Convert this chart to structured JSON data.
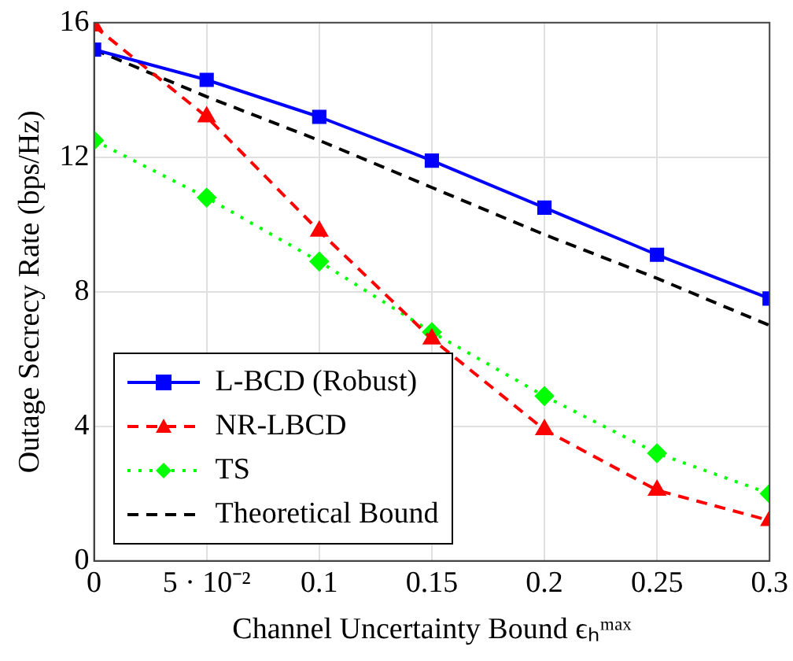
{
  "chart_data": {
    "type": "line",
    "xlabel": "Channel Uncertainty Bound ϵₕᵐᵃˣ",
    "ylabel": "Outage Secrecy Rate (bps/Hz)",
    "x": [
      0,
      0.05,
      0.1,
      0.15,
      0.2,
      0.25,
      0.3
    ],
    "series": [
      {
        "name": "L-BCD (Robust)",
        "color": "#0000ff",
        "marker": "square",
        "line_style": "solid",
        "values": [
          15.2,
          14.3,
          13.2,
          11.9,
          10.5,
          9.1,
          7.8
        ]
      },
      {
        "name": "NR-LBCD",
        "color": "#ff0000",
        "marker": "triangle",
        "line_style": "dashed",
        "values": [
          15.9,
          13.2,
          9.8,
          6.6,
          3.9,
          2.1,
          1.2
        ]
      },
      {
        "name": "TS",
        "color": "#00ff00",
        "marker": "diamond",
        "line_style": "dotted",
        "values": [
          12.5,
          10.8,
          8.9,
          6.8,
          4.9,
          3.2,
          2.0
        ]
      },
      {
        "name": "Theoretical Bound",
        "color": "#000000",
        "marker": "none",
        "line_style": "dashed",
        "values": [
          15.2,
          13.8,
          12.5,
          11.1,
          9.7,
          8.4,
          7.0
        ]
      }
    ],
    "xlim": [
      0,
      0.3
    ],
    "xticks": [
      0,
      {
        "value": 0.05,
        "label": "5 · 10⁻²"
      },
      0.1,
      0.15,
      0.2,
      0.25,
      0.3
    ],
    "ylim": [
      0,
      16
    ],
    "yticks": [
      0,
      4,
      8,
      12,
      16
    ],
    "grid": true,
    "legend": "bottom left"
  }
}
